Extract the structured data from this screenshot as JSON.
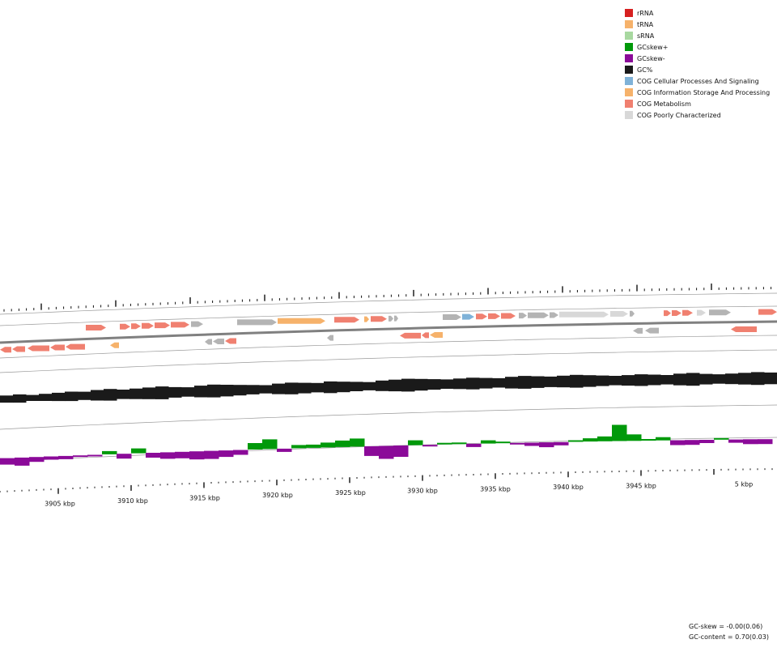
{
  "legend": [
    {
      "label": "rRNA",
      "color": "#d62020"
    },
    {
      "label": "tRNA",
      "color": "#f6b26b"
    },
    {
      "label": "sRNA",
      "color": "#a8d8a0"
    },
    {
      "label": "GCskew+",
      "color": "#00990a"
    },
    {
      "label": "GCskew-",
      "color": "#8b0a99"
    },
    {
      "label": "GC%",
      "color": "#1a1a1a"
    },
    {
      "label": "COG Cellular Processes And Signaling",
      "color": "#7fb2d8"
    },
    {
      "label": "COG Information Storage And Processing",
      "color": "#f6b26b"
    },
    {
      "label": "COG Metabolism",
      "color": "#f08070"
    },
    {
      "label": "COG Poorly Characterized",
      "color": "#d8d8d8"
    }
  ],
  "kbp_labels": [
    "3905 kbp",
    "3910 kbp",
    "3915 kbp",
    "3920 kbp",
    "3925 kbp",
    "3930 kbp",
    "3935 kbp",
    "3940 kbp",
    "3945 kbp",
    "5 kbp"
  ],
  "stats": {
    "gc_skew": "GC-skew = -0.00(0.06)",
    "gc_content": "GC-content = 0.70(0.03)"
  },
  "colors": {
    "metabolism": "#f08070",
    "info": "#f6b26b",
    "cellular": "#7fb2d8",
    "poorly": "#d8d8d8",
    "uncat": "#b4b4b4",
    "gc": "#1a1a1a",
    "skew_pos": "#00990a",
    "skew_neg": "#8b0a99",
    "backbone": "#808080"
  }
}
